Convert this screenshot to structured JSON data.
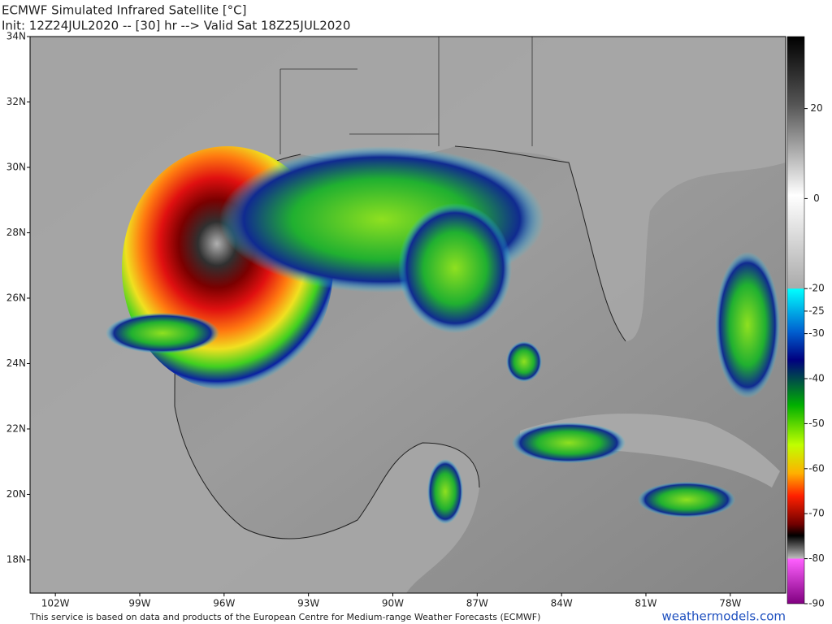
{
  "header": {
    "title": "ECMWF Simulated Infrared Satellite [°C]",
    "subtitle": "Init: 12Z24JUL2020 -- [30] hr --> Valid Sat 18Z25JUL2020"
  },
  "map": {
    "lonlim": [
      -102.9,
      -76.03
    ],
    "latlim": [
      16.98,
      34.0
    ],
    "lon_ticks": [
      {
        "value": -102,
        "label": "102W"
      },
      {
        "value": -99,
        "label": "99W"
      },
      {
        "value": -96,
        "label": "96W"
      },
      {
        "value": -93,
        "label": "93W"
      },
      {
        "value": -90,
        "label": "90W"
      },
      {
        "value": -87,
        "label": "87W"
      },
      {
        "value": -84,
        "label": "84W"
      },
      {
        "value": -81,
        "label": "81W"
      },
      {
        "value": -78,
        "label": "78W"
      }
    ],
    "lat_ticks": [
      {
        "value": 34,
        "label": "34N"
      },
      {
        "value": 32,
        "label": "32N"
      },
      {
        "value": 30,
        "label": "30N"
      },
      {
        "value": 28,
        "label": "28N"
      },
      {
        "value": 26,
        "label": "26N"
      },
      {
        "value": 24,
        "label": "24N"
      },
      {
        "value": 22,
        "label": "22N"
      },
      {
        "value": 20,
        "label": "20N"
      },
      {
        "value": 18,
        "label": "18N"
      }
    ]
  },
  "colorbar": {
    "range": [
      -90,
      36
    ],
    "ticks": [
      20,
      0,
      -20,
      -25,
      -30,
      -40,
      -50,
      -60,
      -70,
      -80,
      -90
    ]
  },
  "footer": {
    "credit": "This service is based on data and products of the European Centre for Medium-range Weather Forecasts (ECMWF)",
    "brand": "weathermodels.com"
  }
}
